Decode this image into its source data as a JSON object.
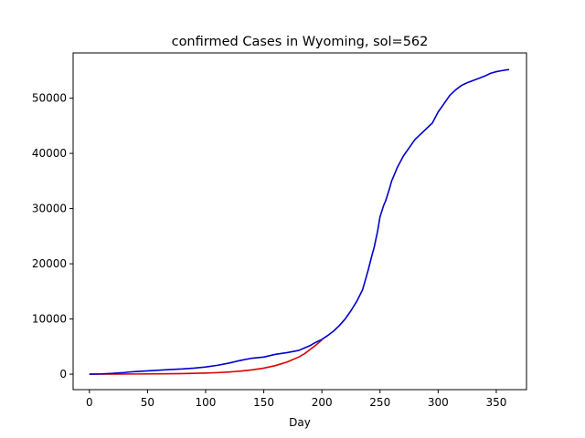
{
  "chart_data": {
    "type": "line",
    "title": "confirmed Cases in Wyoming, sol=562",
    "xlabel": "Day",
    "ylabel": "",
    "xlim": [
      -14,
      376
    ],
    "ylim": [
      -2800,
      58200
    ],
    "xticks": [
      0,
      50,
      100,
      150,
      200,
      250,
      300,
      350
    ],
    "yticks": [
      0,
      10000,
      20000,
      30000,
      40000,
      50000
    ],
    "grid": false,
    "legend": "none",
    "series": [
      {
        "color": "#0000cc",
        "x": [
          0,
          10,
          20,
          30,
          35,
          40,
          50,
          60,
          70,
          80,
          90,
          100,
          110,
          120,
          130,
          140,
          150,
          160,
          170,
          180,
          190,
          195,
          200,
          205,
          210,
          215,
          220,
          225,
          230,
          235,
          238,
          240,
          243,
          245,
          248,
          250,
          253,
          255,
          258,
          260,
          263,
          265,
          270,
          275,
          280,
          285,
          290,
          295,
          300,
          305,
          310,
          315,
          320,
          325,
          330,
          335,
          340,
          345,
          350,
          355,
          361
        ],
        "y": [
          0,
          50,
          150,
          300,
          400,
          480,
          600,
          720,
          850,
          950,
          1100,
          1300,
          1600,
          2000,
          2500,
          2900,
          3100,
          3600,
          3900,
          4300,
          5200,
          5800,
          6300,
          7000,
          7800,
          8800,
          10000,
          11500,
          13200,
          15300,
          17500,
          19000,
          21500,
          23000,
          26000,
          28500,
          30500,
          31500,
          33500,
          35000,
          36500,
          37500,
          39500,
          41000,
          42500,
          43500,
          44500,
          45500,
          47500,
          49000,
          50500,
          51500,
          52300,
          52800,
          53200,
          53600,
          54000,
          54500,
          54800,
          55000,
          55200
        ]
      },
      {
        "color": "#dd0000",
        "x": [
          0,
          20,
          40,
          60,
          80,
          100,
          110,
          120,
          130,
          140,
          150,
          160,
          170,
          180,
          185,
          190,
          195,
          200
        ],
        "y": [
          0,
          10,
          30,
          60,
          110,
          200,
          280,
          400,
          560,
          780,
          1100,
          1550,
          2200,
          3100,
          3700,
          4500,
          5300,
          6200
        ]
      }
    ]
  }
}
